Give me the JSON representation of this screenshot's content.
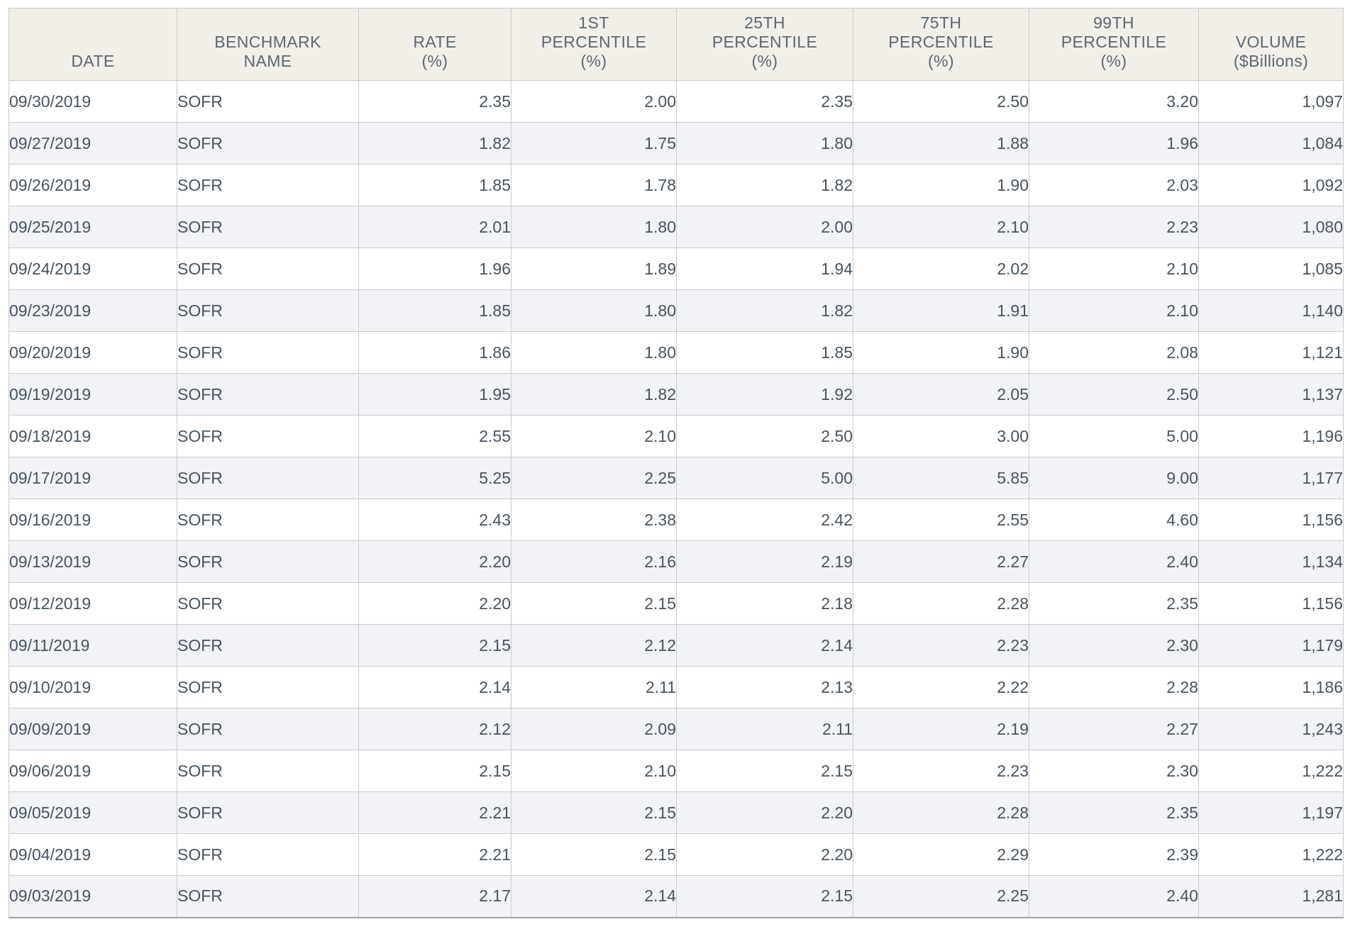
{
  "table": {
    "name": "benchmark-rates-table",
    "columns": [
      {
        "id": "date",
        "header_lines": [
          "DATE"
        ],
        "align": "left"
      },
      {
        "id": "benchmark-name",
        "header_lines": [
          "BENCHMARK",
          "NAME"
        ],
        "align": "left"
      },
      {
        "id": "rate",
        "header_lines": [
          "RATE",
          "(%)"
        ],
        "align": "right"
      },
      {
        "id": "1st-percentile",
        "header_lines": [
          "1ST",
          "PERCENTILE",
          "(%)"
        ],
        "align": "right"
      },
      {
        "id": "25th-percentile",
        "header_lines": [
          "25TH",
          "PERCENTILE",
          "(%)"
        ],
        "align": "right"
      },
      {
        "id": "75th-percentile",
        "header_lines": [
          "75TH",
          "PERCENTILE",
          "(%)"
        ],
        "align": "right"
      },
      {
        "id": "99th-percentile",
        "header_lines": [
          "99TH",
          "PERCENTILE",
          "(%)"
        ],
        "align": "right"
      },
      {
        "id": "volume",
        "header_lines": [
          "VOLUME",
          "($Billions)"
        ],
        "align": "right"
      }
    ],
    "rows": [
      [
        "09/30/2019",
        "SOFR",
        "2.35",
        "2.00",
        "2.35",
        "2.50",
        "3.20",
        "1,097"
      ],
      [
        "09/27/2019",
        "SOFR",
        "1.82",
        "1.75",
        "1.80",
        "1.88",
        "1.96",
        "1,084"
      ],
      [
        "09/26/2019",
        "SOFR",
        "1.85",
        "1.78",
        "1.82",
        "1.90",
        "2.03",
        "1,092"
      ],
      [
        "09/25/2019",
        "SOFR",
        "2.01",
        "1.80",
        "2.00",
        "2.10",
        "2.23",
        "1,080"
      ],
      [
        "09/24/2019",
        "SOFR",
        "1.96",
        "1.89",
        "1.94",
        "2.02",
        "2.10",
        "1,085"
      ],
      [
        "09/23/2019",
        "SOFR",
        "1.85",
        "1.80",
        "1.82",
        "1.91",
        "2.10",
        "1,140"
      ],
      [
        "09/20/2019",
        "SOFR",
        "1.86",
        "1.80",
        "1.85",
        "1.90",
        "2.08",
        "1,121"
      ],
      [
        "09/19/2019",
        "SOFR",
        "1.95",
        "1.82",
        "1.92",
        "2.05",
        "2.50",
        "1,137"
      ],
      [
        "09/18/2019",
        "SOFR",
        "2.55",
        "2.10",
        "2.50",
        "3.00",
        "5.00",
        "1,196"
      ],
      [
        "09/17/2019",
        "SOFR",
        "5.25",
        "2.25",
        "5.00",
        "5.85",
        "9.00",
        "1,177"
      ],
      [
        "09/16/2019",
        "SOFR",
        "2.43",
        "2.38",
        "2.42",
        "2.55",
        "4.60",
        "1,156"
      ],
      [
        "09/13/2019",
        "SOFR",
        "2.20",
        "2.16",
        "2.19",
        "2.27",
        "2.40",
        "1,134"
      ],
      [
        "09/12/2019",
        "SOFR",
        "2.20",
        "2.15",
        "2.18",
        "2.28",
        "2.35",
        "1,156"
      ],
      [
        "09/11/2019",
        "SOFR",
        "2.15",
        "2.12",
        "2.14",
        "2.23",
        "2.30",
        "1,179"
      ],
      [
        "09/10/2019",
        "SOFR",
        "2.14",
        "2.11",
        "2.13",
        "2.22",
        "2.28",
        "1,186"
      ],
      [
        "09/09/2019",
        "SOFR",
        "2.12",
        "2.09",
        "2.11",
        "2.19",
        "2.27",
        "1,243"
      ],
      [
        "09/06/2019",
        "SOFR",
        "2.15",
        "2.10",
        "2.15",
        "2.23",
        "2.30",
        "1,222"
      ],
      [
        "09/05/2019",
        "SOFR",
        "2.21",
        "2.15",
        "2.20",
        "2.28",
        "2.35",
        "1,197"
      ],
      [
        "09/04/2019",
        "SOFR",
        "2.21",
        "2.15",
        "2.20",
        "2.29",
        "2.39",
        "1,222"
      ],
      [
        "09/03/2019",
        "SOFR",
        "2.17",
        "2.14",
        "2.15",
        "2.25",
        "2.40",
        "1,281"
      ]
    ]
  },
  "colors": {
    "header_background": "#f2efe8",
    "stripe_row_background": "#f1f3f7",
    "grid_border": "#cbcbcb",
    "table_bottom_border": "#9ea4a8",
    "header_text": "#5a6772",
    "cell_text": "#46545f"
  }
}
